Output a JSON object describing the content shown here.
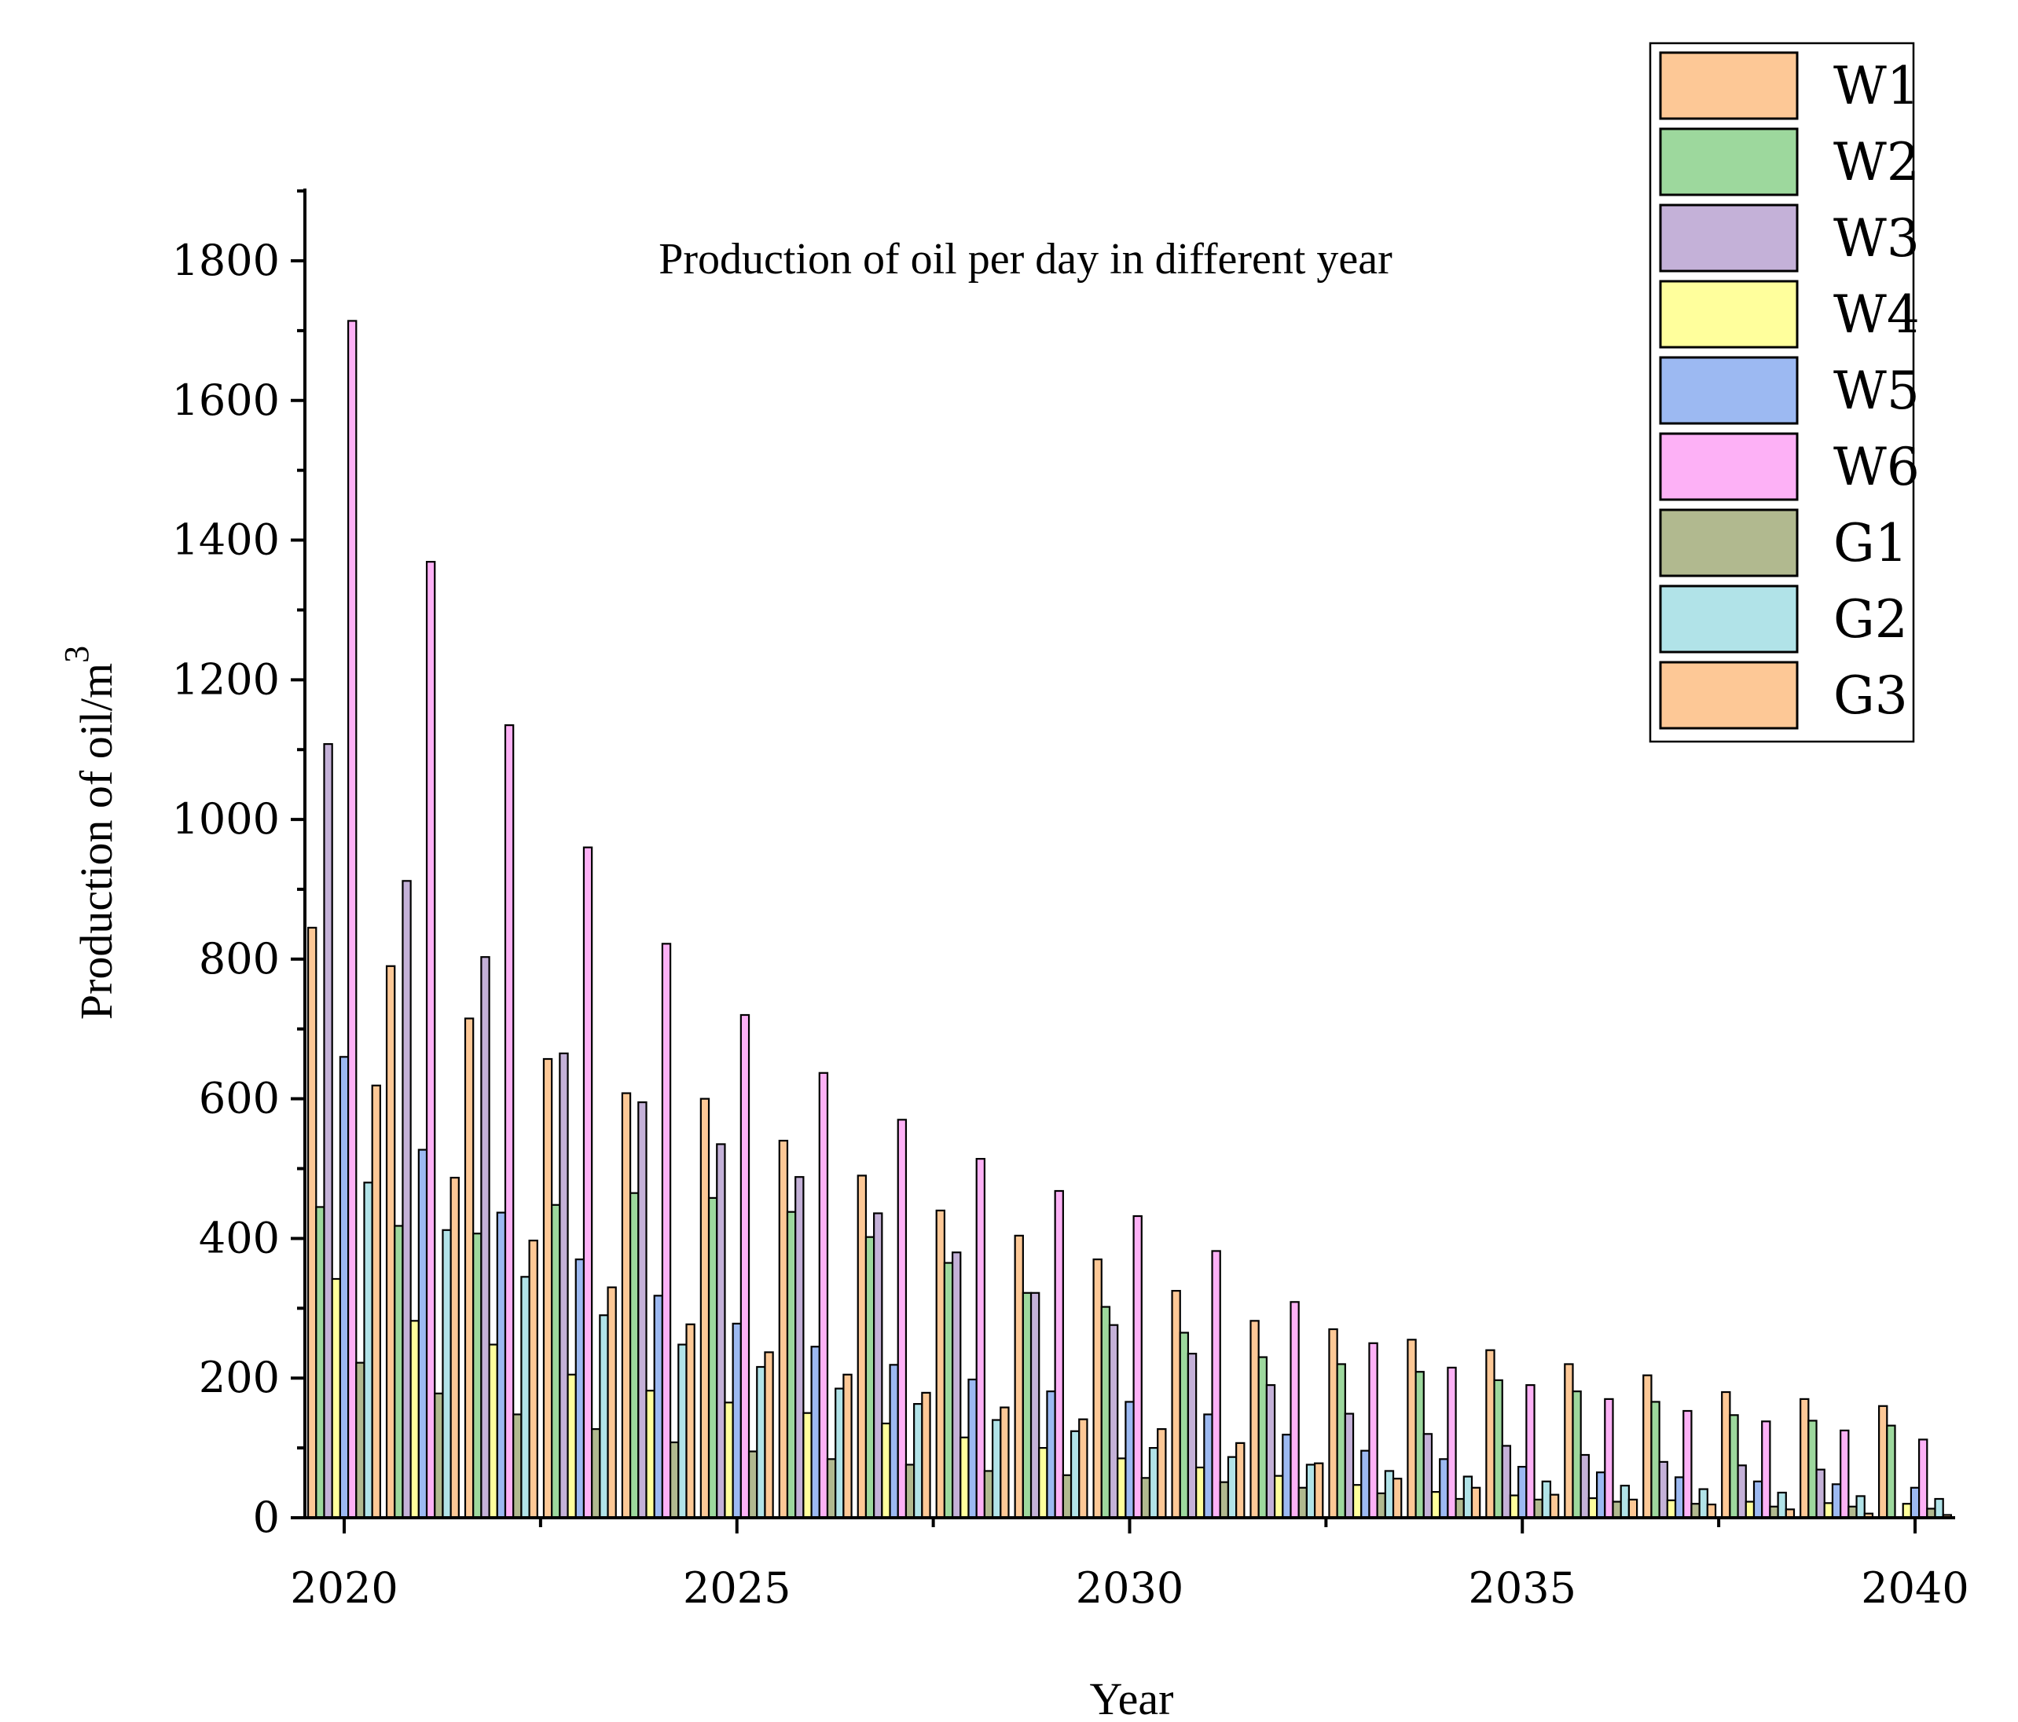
{
  "chart_data": {
    "type": "bar",
    "title": "Production of oil per day in different year",
    "xlabel": "Year",
    "ylabel": "Production of oil/m",
    "ylabel_sup": "3",
    "ylim": [
      0,
      1900
    ],
    "yticks": [
      0,
      200,
      400,
      600,
      800,
      1000,
      1200,
      1400,
      1600,
      1800
    ],
    "xlim": [
      2019.5,
      2040.5
    ],
    "xticks": [
      2020,
      2025,
      2030,
      2035,
      2040
    ],
    "legend_position": "top-right",
    "categories": [
      2020,
      2021,
      2022,
      2023,
      2024,
      2025,
      2026,
      2027,
      2028,
      2029,
      2030,
      2031,
      2032,
      2033,
      2034,
      2035,
      2036,
      2037,
      2038,
      2039,
      2040
    ],
    "series": [
      {
        "name": "W1",
        "color": "#FDC896",
        "values": [
          845,
          790,
          715,
          657,
          608,
          600,
          540,
          490,
          440,
          404,
          370,
          325,
          282,
          270,
          255,
          240,
          220,
          204,
          180,
          170,
          160
        ]
      },
      {
        "name": "W2",
        "color": "#9DD89D",
        "values": [
          445,
          418,
          407,
          448,
          465,
          458,
          438,
          402,
          365,
          322,
          302,
          265,
          230,
          220,
          209,
          197,
          181,
          166,
          147,
          139,
          132
        ]
      },
      {
        "name": "W3",
        "color": "#C4B1D8",
        "values": [
          1108,
          912,
          803,
          665,
          595,
          535,
          488,
          436,
          380,
          322,
          276,
          235,
          190,
          149,
          120,
          103,
          90,
          80,
          75,
          69,
          0
        ]
      },
      {
        "name": "W4",
        "color": "#FFFF9C",
        "values": [
          342,
          282,
          248,
          205,
          182,
          165,
          150,
          135,
          115,
          100,
          85,
          72,
          60,
          47,
          37,
          32,
          28,
          25,
          23,
          21,
          20
        ]
      },
      {
        "name": "W5",
        "color": "#9CB9F2",
        "values": [
          660,
          527,
          437,
          370,
          318,
          278,
          245,
          219,
          198,
          181,
          166,
          148,
          119,
          96,
          84,
          73,
          65,
          58,
          52,
          48,
          43
        ]
      },
      {
        "name": "W6",
        "color": "#FDB1F6",
        "values": [
          1714,
          1369,
          1135,
          960,
          822,
          720,
          637,
          570,
          514,
          468,
          432,
          382,
          309,
          250,
          215,
          190,
          170,
          153,
          138,
          125,
          112
        ]
      },
      {
        "name": "G1",
        "color": "#B1B98F",
        "values": [
          222,
          178,
          148,
          127,
          108,
          95,
          84,
          76,
          67,
          61,
          57,
          51,
          43,
          35,
          27,
          26,
          23,
          20,
          16,
          16,
          13
        ]
      },
      {
        "name": "G2",
        "color": "#B1E3E8",
        "values": [
          480,
          412,
          345,
          290,
          248,
          216,
          185,
          163,
          140,
          124,
          100,
          87,
          76,
          67,
          59,
          52,
          46,
          41,
          36,
          31,
          27
        ]
      },
      {
        "name": "G3",
        "color": "#FDC896",
        "values": [
          619,
          487,
          397,
          330,
          277,
          237,
          205,
          179,
          158,
          141,
          127,
          107,
          78,
          56,
          43,
          33,
          26,
          19,
          12,
          6,
          4
        ]
      }
    ]
  }
}
